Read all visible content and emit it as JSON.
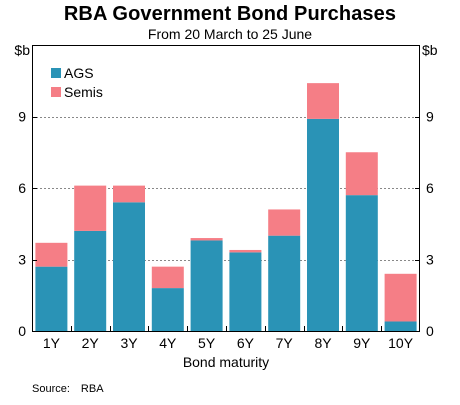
{
  "header": {
    "title": "RBA Government Bond Purchases",
    "subtitle": "From 20 March to 25 June"
  },
  "footer": {
    "source_label": "Source:",
    "source_value": "RBA"
  },
  "colors": {
    "AGS": "#2a93b6",
    "Semis": "#f57e86",
    "axis": "#000000",
    "grid": "#888888"
  },
  "chart_data": {
    "type": "bar",
    "stacked": true,
    "title": "RBA Government Bond Purchases",
    "subtitle": "From 20 March to 25 June",
    "xlabel": "Bond maturity",
    "ylabel_left": "$b",
    "ylabel_right": "$b",
    "ylim": [
      0,
      12
    ],
    "yticks": [
      0,
      3,
      6,
      9
    ],
    "grid": true,
    "legend_position": "top-left",
    "categories": [
      "1Y",
      "2Y",
      "3Y",
      "4Y",
      "5Y",
      "6Y",
      "7Y",
      "8Y",
      "9Y",
      "10Y"
    ],
    "series": [
      {
        "name": "AGS",
        "values": [
          2.7,
          4.2,
          5.4,
          1.8,
          3.8,
          3.3,
          4.0,
          8.9,
          5.7,
          0.4
        ]
      },
      {
        "name": "Semis",
        "values": [
          1.0,
          1.9,
          0.7,
          0.9,
          0.1,
          0.1,
          1.1,
          1.5,
          1.8,
          2.0
        ]
      }
    ]
  }
}
